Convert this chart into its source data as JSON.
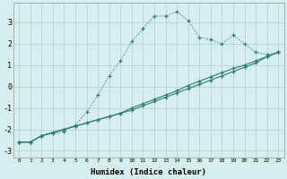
{
  "xlabel": "Humidex (Indice chaleur)",
  "bg_color": "#d6eeee",
  "grid_color": "#b8d4d4",
  "line_color": "#2e7d6e",
  "xlim": [
    -0.5,
    23.5
  ],
  "ylim": [
    -3.3,
    3.9
  ],
  "yticks": [
    -3,
    -2,
    -1,
    0,
    1,
    2,
    3
  ],
  "xticks": [
    0,
    1,
    2,
    3,
    4,
    5,
    6,
    7,
    8,
    9,
    10,
    11,
    12,
    13,
    14,
    15,
    16,
    17,
    18,
    19,
    20,
    21,
    22,
    23
  ],
  "curve_x": [
    0,
    1,
    2,
    3,
    4,
    5,
    6,
    7,
    8,
    9,
    10,
    11,
    12,
    13,
    14,
    15,
    16,
    17,
    18,
    19,
    20,
    21,
    22,
    23
  ],
  "curve_y": [
    -2.6,
    -2.6,
    -2.3,
    -2.2,
    -2.1,
    -1.8,
    -1.2,
    -0.4,
    0.5,
    1.2,
    2.1,
    2.7,
    3.3,
    3.3,
    3.5,
    3.1,
    2.3,
    2.2,
    2.0,
    2.4,
    2.0,
    1.6,
    1.5,
    1.6
  ],
  "line1_x": [
    0,
    1,
    2,
    3,
    4,
    5,
    6,
    7,
    8,
    9,
    10,
    11,
    12,
    13,
    14,
    15,
    16,
    17,
    18,
    19,
    20,
    21,
    22,
    23
  ],
  "line1_y": [
    -2.6,
    -2.6,
    -2.3,
    -2.15,
    -2.0,
    -1.85,
    -1.7,
    -1.55,
    -1.4,
    -1.25,
    -1.1,
    -0.9,
    -0.7,
    -0.5,
    -0.3,
    -0.1,
    0.1,
    0.3,
    0.5,
    0.7,
    0.9,
    1.1,
    1.4,
    1.6
  ],
  "line2_x": [
    0,
    1,
    2,
    3,
    4,
    5,
    6,
    7,
    8,
    9,
    10,
    11,
    12,
    13,
    14,
    15,
    16,
    17,
    18,
    19,
    20,
    21,
    22,
    23
  ],
  "line2_y": [
    -2.6,
    -2.6,
    -2.3,
    -2.15,
    -2.0,
    -1.85,
    -1.7,
    -1.55,
    -1.4,
    -1.25,
    -1.0,
    -0.8,
    -0.6,
    -0.4,
    -0.2,
    0.05,
    0.25,
    0.45,
    0.65,
    0.85,
    1.0,
    1.2,
    1.4,
    1.6
  ]
}
